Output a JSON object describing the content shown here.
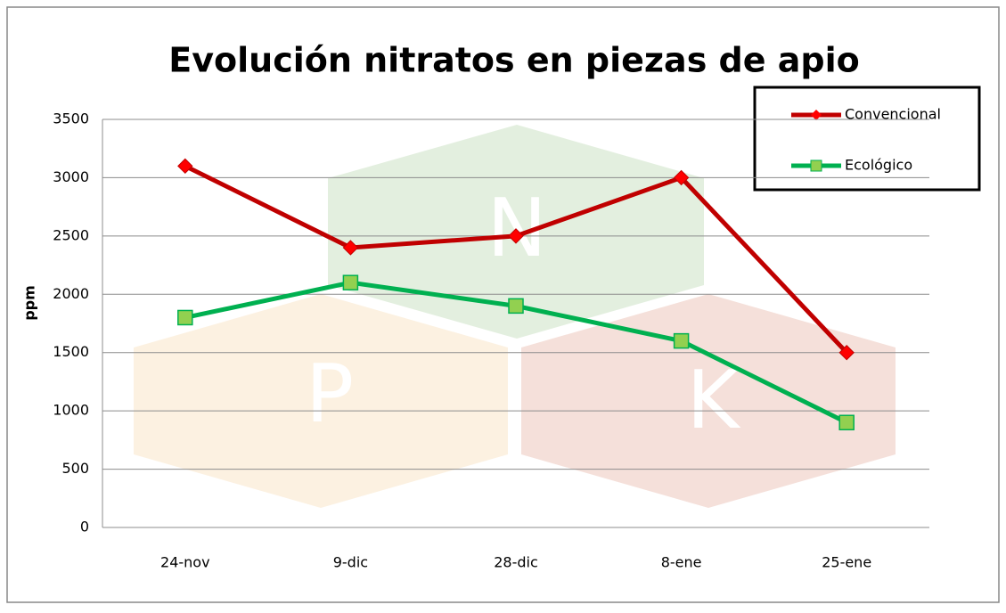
{
  "chart_data": {
    "type": "line",
    "title": "Evolución nitratos en piezas de apio",
    "y_label": "ppm",
    "watermark": [
      "N",
      "P",
      "K"
    ],
    "categories": [
      "24-nov",
      "9-dic",
      "28-dic",
      "8-ene",
      "25-ene"
    ],
    "series": [
      {
        "name": "Convencional",
        "color": "#c00000",
        "values": [
          3100,
          2400,
          2500,
          3000,
          1500
        ]
      },
      {
        "name": "Ecológico",
        "color": "#00b050",
        "values": [
          1800,
          2100,
          1900,
          1600,
          900
        ]
      }
    ],
    "ylim": [
      0,
      3500
    ],
    "yticks": [
      0,
      500,
      1000,
      1500,
      2000,
      2500,
      3000,
      3500
    ],
    "grid": true,
    "legend": "top-right"
  }
}
